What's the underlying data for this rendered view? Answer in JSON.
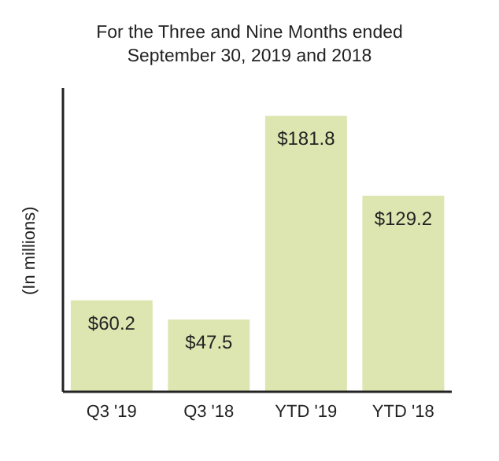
{
  "chart_data": {
    "type": "bar",
    "title": "For the Three and Nine Months ended\nSeptember 30, 2019 and 2018",
    "ylabel": "(In millions)",
    "categories": [
      "Q3 '19",
      "Q3 '18",
      "YTD '19",
      "YTD '18"
    ],
    "values": [
      60.2,
      47.5,
      181.8,
      129.2
    ],
    "value_labels": [
      "$60.2",
      "$47.5",
      "$181.8",
      "$129.2"
    ],
    "color": "#dde6b0",
    "ylim": [
      0,
      200
    ],
    "tick_labels": "x"
  }
}
